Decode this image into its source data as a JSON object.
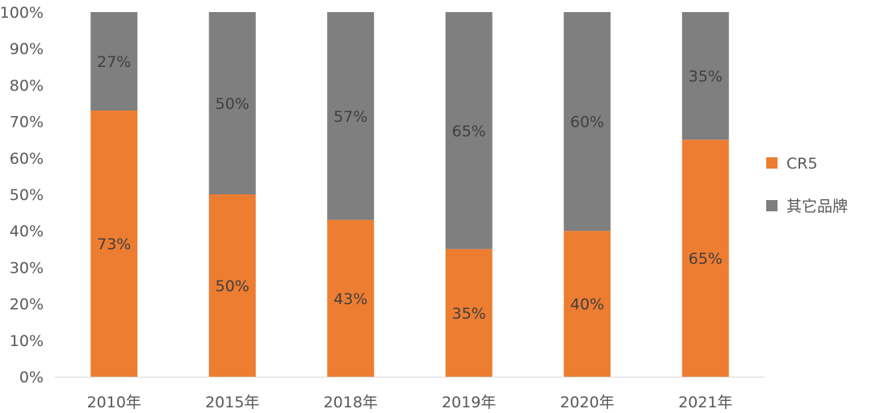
{
  "chart_data": {
    "type": "bar",
    "stacked": true,
    "categories": [
      "2010年",
      "2015年",
      "2018年",
      "2019年",
      "2020年",
      "2021年"
    ],
    "series": [
      {
        "name": "CR5",
        "color": "#ED7D31",
        "values": [
          73,
          50,
          43,
          35,
          40,
          65
        ],
        "labels": [
          "73%",
          "50%",
          "43%",
          "35%",
          "40%",
          "65%"
        ]
      },
      {
        "name": "其它品牌",
        "color": "#7F7F7F",
        "values": [
          27,
          50,
          57,
          65,
          60,
          35
        ],
        "labels": [
          "27%",
          "50%",
          "57%",
          "65%",
          "60%",
          "35%"
        ]
      }
    ],
    "yticks": [
      "0%",
      "10%",
      "20%",
      "30%",
      "40%",
      "50%",
      "60%",
      "70%",
      "80%",
      "90%",
      "100%"
    ],
    "ylim": [
      0,
      100
    ],
    "grid": false,
    "legend": "right",
    "title": "",
    "xlabel": "",
    "ylabel": ""
  }
}
